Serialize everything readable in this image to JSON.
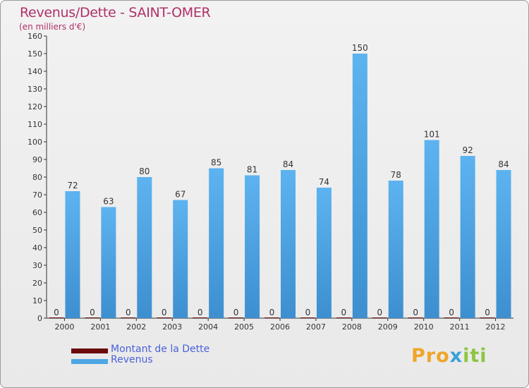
{
  "chart_data": {
    "type": "bar",
    "title": "Revenus/Dette - SAINT-OMER",
    "subtitle": "(en milliers d'€)",
    "categories": [
      "2000",
      "2001",
      "2002",
      "2003",
      "2004",
      "2005",
      "2006",
      "2007",
      "2008",
      "2009",
      "2010",
      "2011",
      "2012"
    ],
    "series": [
      {
        "name": "Montant de la Dette",
        "color": "#6b0a0a",
        "values": [
          0,
          0,
          0,
          0,
          0,
          0,
          0,
          0,
          0,
          0,
          0,
          0,
          0
        ]
      },
      {
        "name": "Revenus",
        "color": "#4ea6e4",
        "values": [
          72,
          63,
          80,
          67,
          85,
          81,
          84,
          74,
          150,
          78,
          101,
          92,
          84
        ]
      }
    ],
    "yticks": [
      0,
      10,
      20,
      30,
      40,
      50,
      60,
      70,
      80,
      90,
      100,
      110,
      120,
      130,
      140,
      150,
      160
    ],
    "ylim": [
      0,
      160
    ],
    "grid": false,
    "legend_position": "bottom-left"
  },
  "brand": {
    "part1": "Pro",
    "part2": "x",
    "part3": "iti"
  }
}
